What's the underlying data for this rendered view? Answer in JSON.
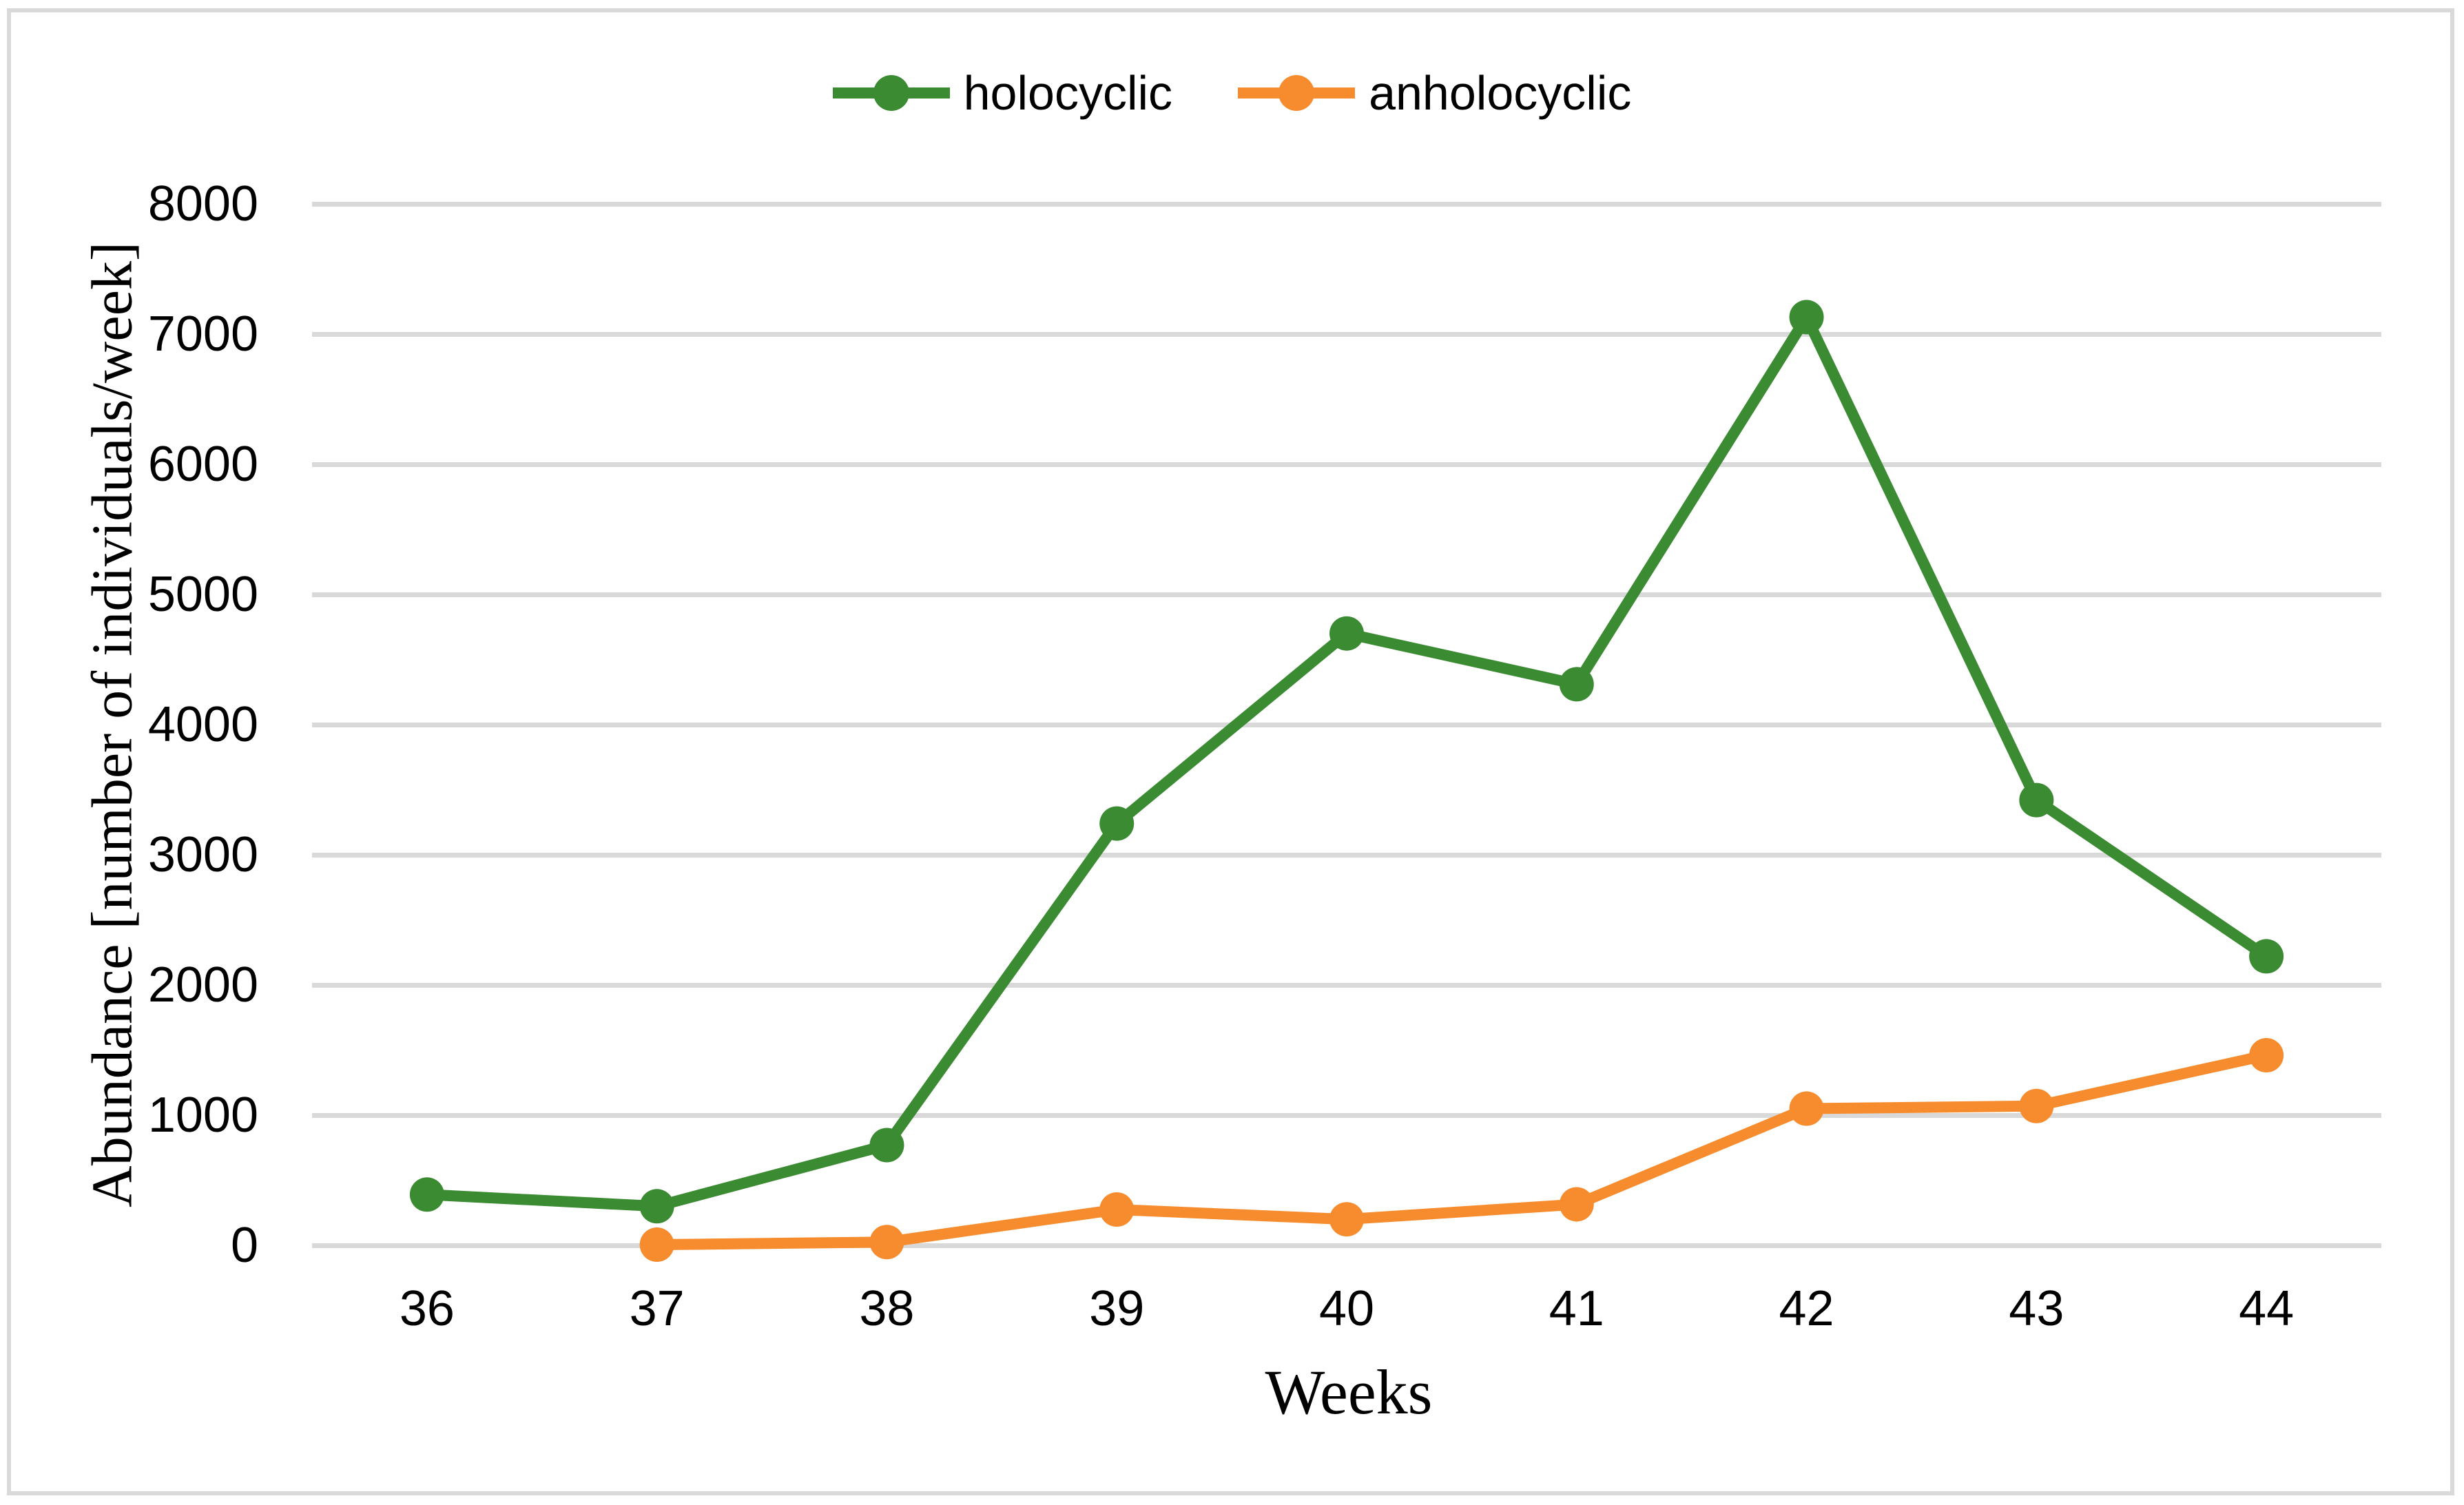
{
  "figure": {
    "background": "#FFFFFF",
    "border_color": "#D9D9D9",
    "text_color": "#000000"
  },
  "legend": {
    "items": [
      {
        "label": "holocyclic",
        "color": "#3B8B32"
      },
      {
        "label": "anholocyclic",
        "color": "#F68C2D"
      }
    ]
  },
  "chart_data": {
    "type": "line",
    "title": "",
    "xlabel": "Weeks",
    "ylabel": "Abundance [number of individuals/week]",
    "categories": [
      "36",
      "37",
      "38",
      "39",
      "40",
      "41",
      "42",
      "43",
      "44"
    ],
    "series": [
      {
        "name": "holocyclic",
        "color": "#3B8B32",
        "values": [
          390,
          300,
          770,
          3240,
          4700,
          4310,
          7130,
          3420,
          2220
        ]
      },
      {
        "name": "anholocyclic",
        "color": "#F68C2D",
        "values": [
          null,
          5,
          25,
          275,
          200,
          315,
          1050,
          1070,
          1460
        ]
      }
    ],
    "ylim": [
      0,
      8000
    ],
    "ytick_step": 1000,
    "grid": true,
    "gridline_color": "#D9D9D9",
    "legend_position": "top-center",
    "marker": "circle"
  }
}
